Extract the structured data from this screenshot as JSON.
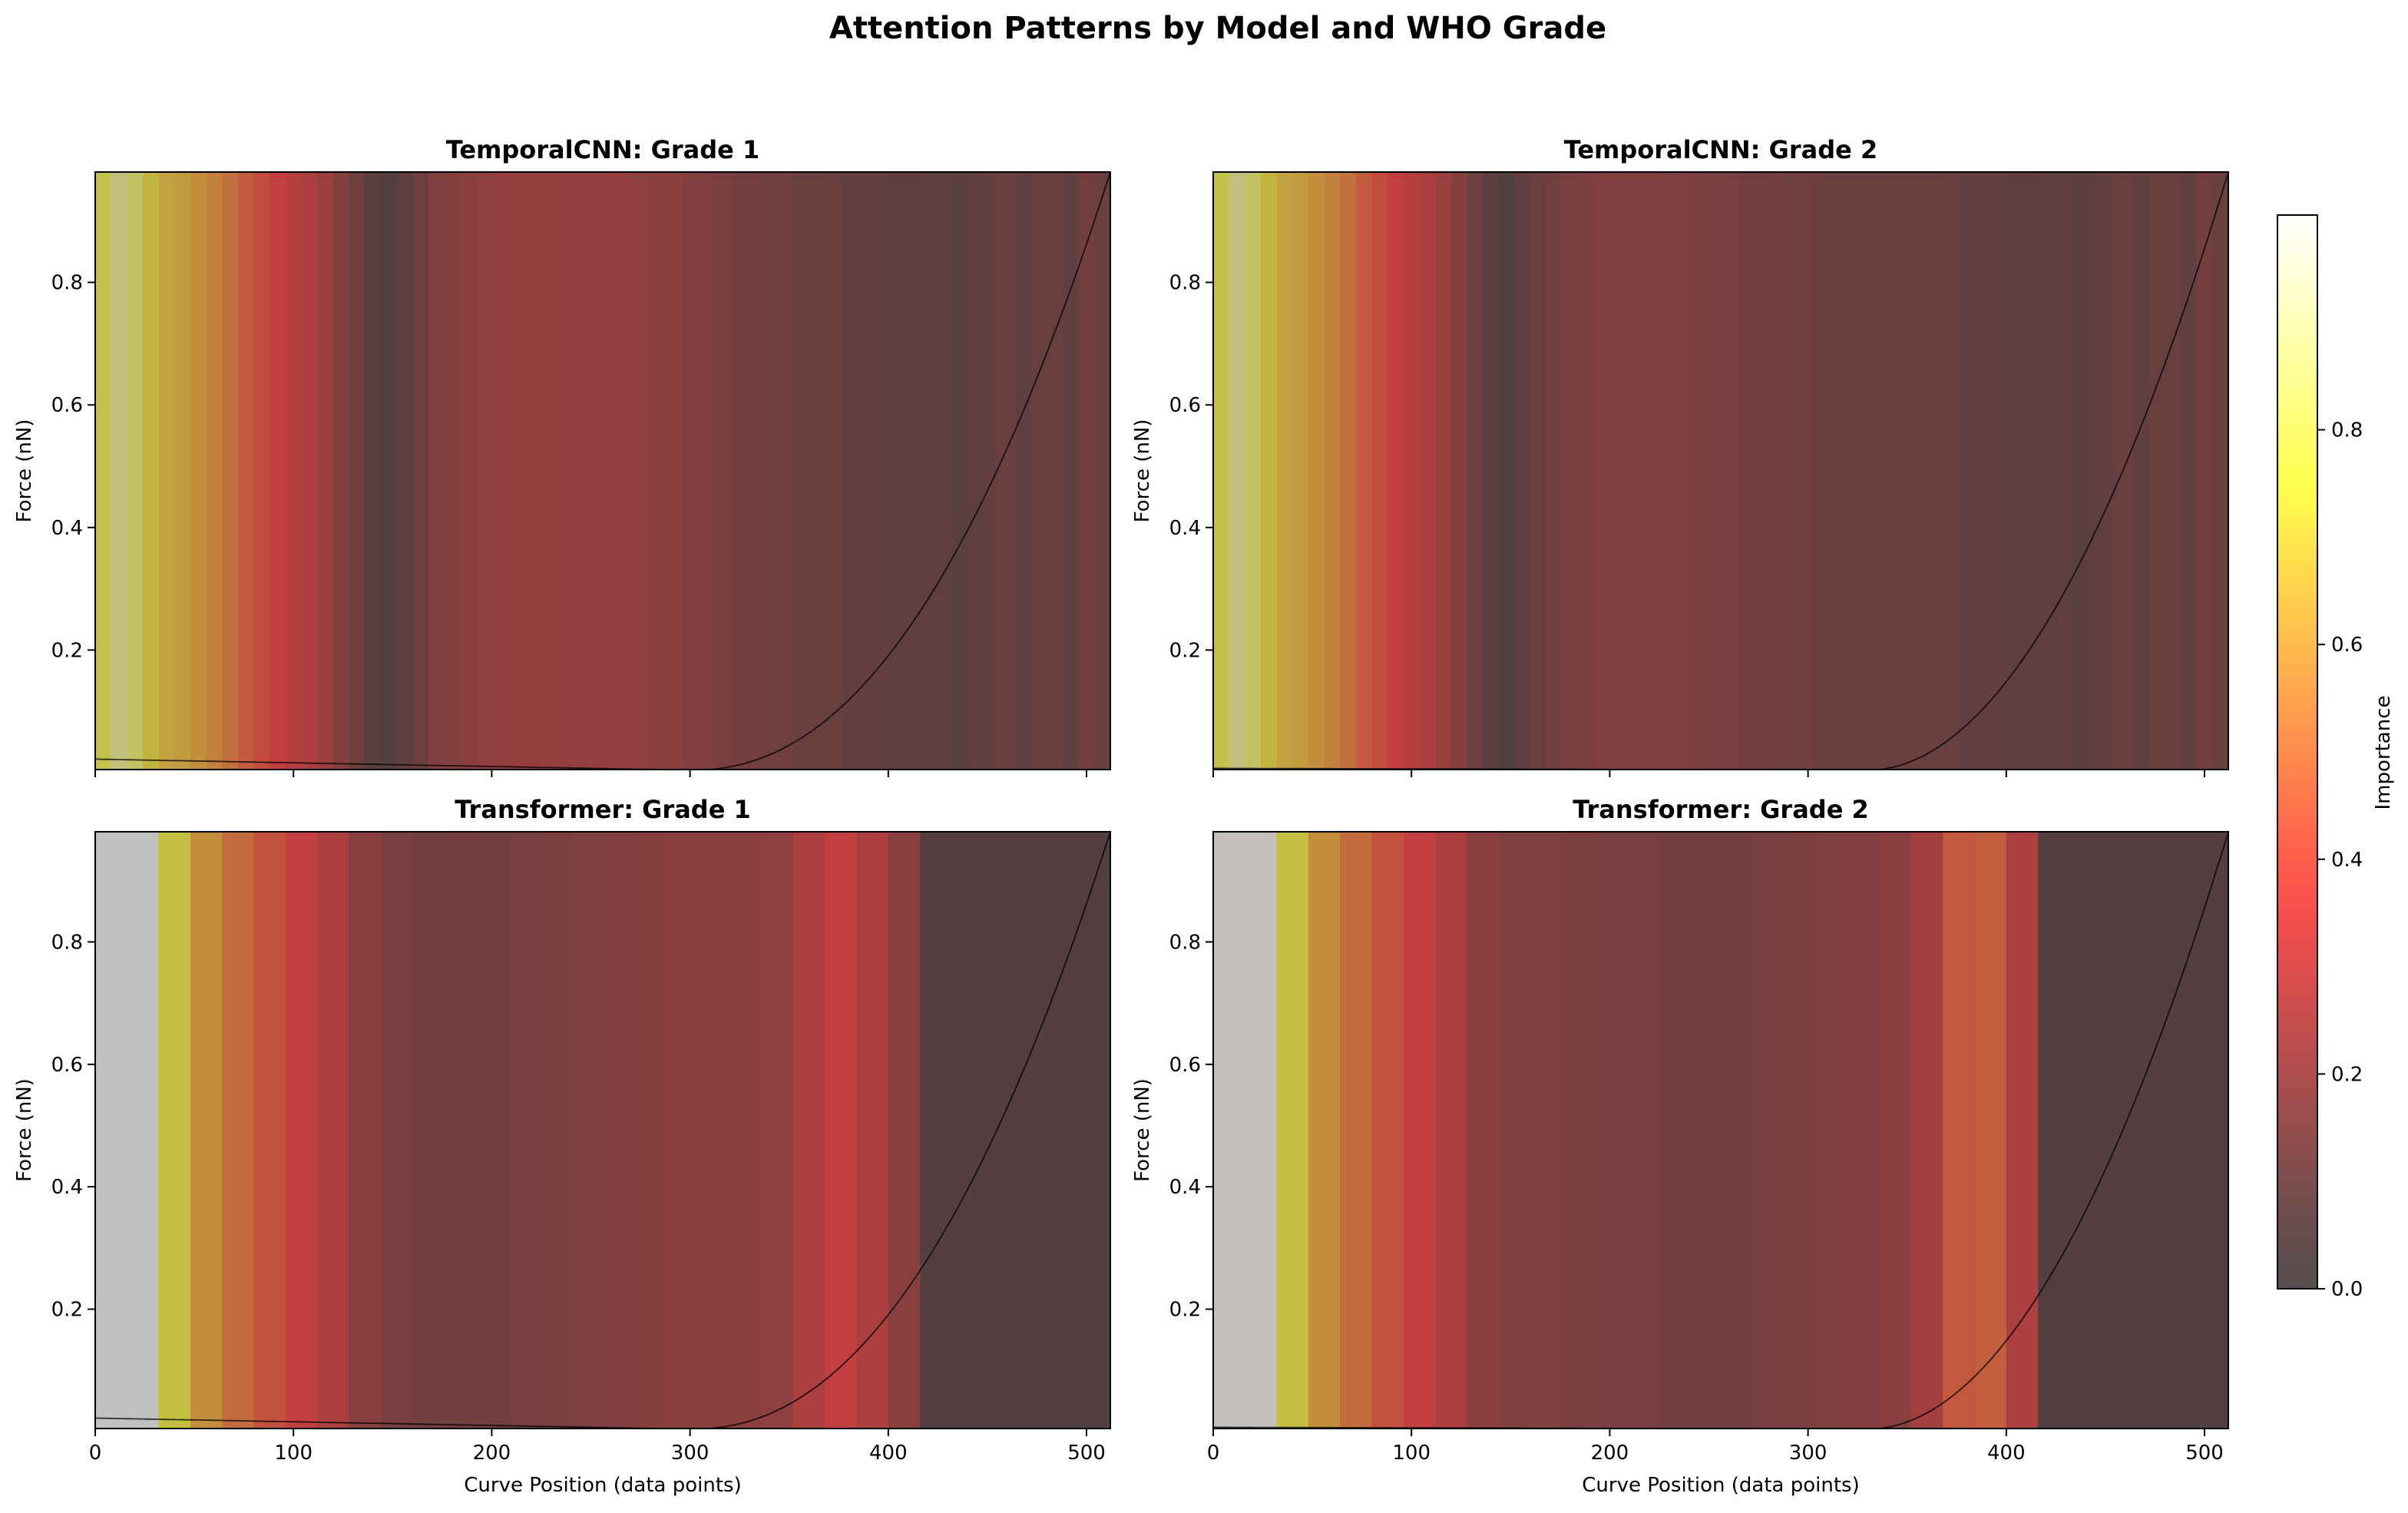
{
  "figure": {
    "title": "Attention Patterns by Model and WHO Grade"
  },
  "colorbar": {
    "label": "Importance",
    "ticks": [
      "0.0",
      "0.2",
      "0.4",
      "0.6",
      "0.8"
    ],
    "range": [
      0,
      1
    ],
    "colormap": "hot (alpha-blended over white)"
  },
  "chart_data": [
    {
      "type": "heatmap",
      "title": "TemporalCNN: Grade 1",
      "xlabel": "",
      "ylabel": "Force (nN)",
      "xlim": [
        0,
        512
      ],
      "ylim": [
        0.005,
        0.98
      ],
      "yticks": [
        0.2,
        0.4,
        0.6,
        0.8
      ],
      "xticks": [
        0,
        100,
        200,
        300,
        400,
        500
      ],
      "show_xticklabels": false,
      "segment_width": 8,
      "importance_profile": [
        [
          0,
          0.82
        ],
        [
          8,
          0.72
        ],
        [
          14,
          0.95
        ],
        [
          20,
          0.82
        ],
        [
          30,
          0.68
        ],
        [
          46,
          0.63
        ],
        [
          60,
          0.56
        ],
        [
          70,
          0.5
        ],
        [
          80,
          0.42
        ],
        [
          92,
          0.36
        ],
        [
          110,
          0.29
        ],
        [
          125,
          0.18
        ],
        [
          138,
          0.08
        ],
        [
          150,
          0.04
        ],
        [
          160,
          0.1
        ],
        [
          172,
          0.17
        ],
        [
          190,
          0.21
        ],
        [
          215,
          0.24
        ],
        [
          240,
          0.23
        ],
        [
          265,
          0.23
        ],
        [
          290,
          0.2
        ],
        [
          320,
          0.15
        ],
        [
          350,
          0.12
        ],
        [
          380,
          0.1
        ],
        [
          410,
          0.09
        ],
        [
          440,
          0.07
        ],
        [
          460,
          0.12
        ],
        [
          470,
          0.08
        ],
        [
          480,
          0.13
        ],
        [
          490,
          0.08
        ],
        [
          500,
          0.14
        ],
        [
          512,
          0.1
        ]
      ],
      "curve_start_force": 0.018,
      "curve_contact_point": 300,
      "curve_max_force": 0.98,
      "curve_exponent": 2.2
    },
    {
      "type": "heatmap",
      "title": "TemporalCNN: Grade 2",
      "xlabel": "",
      "ylabel": "Force (nN)",
      "xlim": [
        0,
        512
      ],
      "ylim": [
        0.005,
        0.98
      ],
      "yticks": [
        0.2,
        0.4,
        0.6,
        0.8
      ],
      "xticks": [
        0,
        100,
        200,
        300,
        400,
        500
      ],
      "show_xticklabels": false,
      "segment_width": 8,
      "importance_profile": [
        [
          0,
          0.82
        ],
        [
          8,
          0.72
        ],
        [
          14,
          0.95
        ],
        [
          20,
          0.82
        ],
        [
          30,
          0.68
        ],
        [
          46,
          0.63
        ],
        [
          60,
          0.56
        ],
        [
          70,
          0.5
        ],
        [
          80,
          0.42
        ],
        [
          92,
          0.36
        ],
        [
          110,
          0.29
        ],
        [
          125,
          0.18
        ],
        [
          138,
          0.08
        ],
        [
          150,
          0.04
        ],
        [
          160,
          0.1
        ],
        [
          175,
          0.15
        ],
        [
          200,
          0.18
        ],
        [
          230,
          0.17
        ],
        [
          260,
          0.15
        ],
        [
          290,
          0.13
        ],
        [
          320,
          0.11
        ],
        [
          350,
          0.12
        ],
        [
          380,
          0.1
        ],
        [
          410,
          0.09
        ],
        [
          440,
          0.07
        ],
        [
          460,
          0.12
        ],
        [
          470,
          0.08
        ],
        [
          480,
          0.13
        ],
        [
          490,
          0.08
        ],
        [
          500,
          0.14
        ],
        [
          512,
          0.1
        ]
      ],
      "curve_start_force": 0.003,
      "curve_contact_point": 330,
      "curve_max_force": 0.98,
      "curve_exponent": 2.0
    },
    {
      "type": "heatmap",
      "title": "Transformer: Grade 1",
      "xlabel": "Curve Position (data points)",
      "ylabel": "Force (nN)",
      "xlim": [
        0,
        512
      ],
      "ylim": [
        0.005,
        0.98
      ],
      "yticks": [
        0.2,
        0.4,
        0.6,
        0.8
      ],
      "xticks": [
        0,
        100,
        200,
        300,
        400,
        500
      ],
      "show_xticklabels": true,
      "segment_width": 16,
      "importance_blocks": [
        1.0,
        1.0,
        0.75,
        0.6,
        0.5,
        0.42,
        0.36,
        0.3,
        0.2,
        0.15,
        0.14,
        0.14,
        0.14,
        0.15,
        0.16,
        0.17,
        0.18,
        0.19,
        0.2,
        0.2,
        0.21,
        0.22,
        0.3,
        0.36,
        0.3,
        0.2,
        0.05,
        0.05,
        0.05,
        0.05,
        0.05,
        0.05
      ],
      "curve_start_force": 0.018,
      "curve_contact_point": 300,
      "curve_max_force": 0.98,
      "curve_exponent": 2.2
    },
    {
      "type": "heatmap",
      "title": "Transformer: Grade 2",
      "xlabel": "Curve Position (data points)",
      "ylabel": "Force (nN)",
      "xlim": [
        0,
        512
      ],
      "ylim": [
        0.005,
        0.98
      ],
      "yticks": [
        0.2,
        0.4,
        0.6,
        0.8
      ],
      "xticks": [
        0,
        100,
        200,
        300,
        400,
        500
      ],
      "show_xticklabels": true,
      "segment_width": 16,
      "importance_blocks": [
        0.99,
        0.99,
        0.75,
        0.6,
        0.5,
        0.42,
        0.36,
        0.3,
        0.2,
        0.17,
        0.17,
        0.16,
        0.15,
        0.15,
        0.14,
        0.14,
        0.14,
        0.15,
        0.16,
        0.17,
        0.18,
        0.2,
        0.28,
        0.44,
        0.46,
        0.3,
        0.05,
        0.05,
        0.05,
        0.05,
        0.05,
        0.05
      ],
      "curve_start_force": 0.003,
      "curve_contact_point": 330,
      "curve_max_force": 0.98,
      "curve_exponent": 2.0
    }
  ]
}
